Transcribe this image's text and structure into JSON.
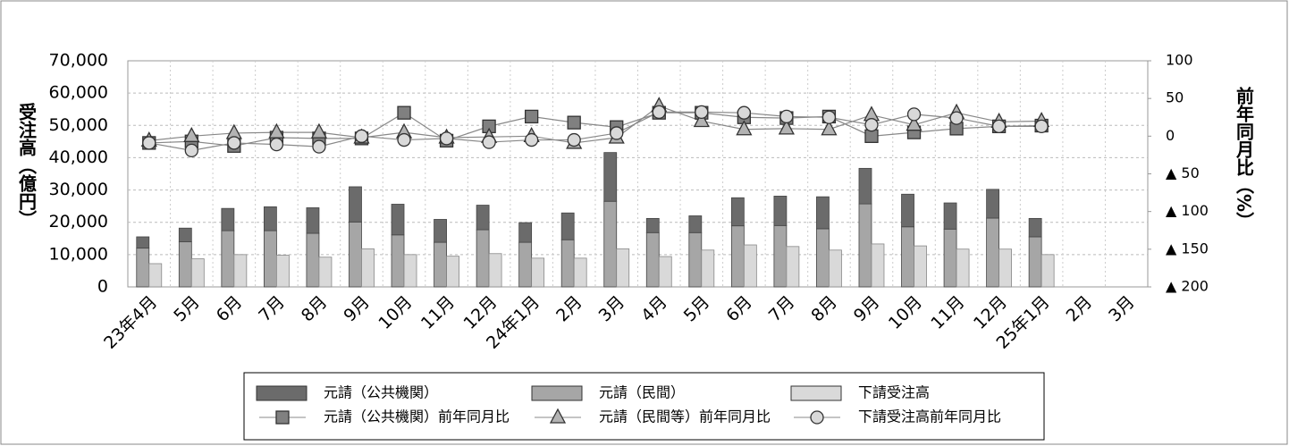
{
  "chart_data": {
    "type": "bar",
    "categories": [
      "23年4月",
      "5月",
      "6月",
      "7月",
      "8月",
      "9月",
      "10月",
      "11月",
      "12月",
      "24年1月",
      "2月",
      "3月",
      "4月",
      "5月",
      "6月",
      "7月",
      "8月",
      "9月",
      "10月",
      "11月",
      "12月",
      "25年1月",
      "2月",
      "3月"
    ],
    "ylabel": "受注高（億円）",
    "y2label": "前年同月比（%）",
    "ylim": [
      0,
      70000
    ],
    "yticks": [
      0,
      {
        "value": 10000,
        "label": "10,000"
      },
      {
        "value": 20000,
        "label": "20,000"
      },
      {
        "value": 30000,
        "label": "30,000"
      },
      {
        "value": 40000,
        "label": "40,000"
      },
      {
        "value": 50000,
        "label": "50,000"
      },
      {
        "value": 60000,
        "label": "60,000"
      },
      {
        "value": 70000,
        "label": "70,000"
      }
    ],
    "y2lim": [
      -200,
      100
    ],
    "y2ticks": [
      100,
      50,
      0,
      {
        "value": -50,
        "label": "▲ 50"
      },
      {
        "value": -100,
        "label": "▲ 100"
      },
      {
        "value": -150,
        "label": "▲ 150"
      },
      {
        "value": -200,
        "label": "▲ 200"
      }
    ],
    "grid": true,
    "series": [
      {
        "name": "元請（公共機関）",
        "type": "stacked",
        "color": "#6b6b6b",
        "values": [
          3500,
          4200,
          6900,
          7400,
          7900,
          10900,
          9500,
          7100,
          7600,
          6100,
          8300,
          15100,
          4400,
          5200,
          8700,
          9100,
          9900,
          11000,
          10100,
          8100,
          8900,
          5700,
          null,
          null
        ]
      },
      {
        "name": "元請（民間）",
        "type": "stacked",
        "color": "#a6a6a6",
        "values": [
          12000,
          14000,
          17400,
          17400,
          16600,
          20100,
          16100,
          13800,
          17700,
          13800,
          14600,
          26500,
          16800,
          16800,
          18900,
          19000,
          18000,
          25700,
          18600,
          17900,
          21300,
          15500,
          null,
          null
        ]
      },
      {
        "name": "下請受注高",
        "type": "bar",
        "color": "#d9d9d9",
        "values": [
          7200,
          8700,
          10000,
          9800,
          9200,
          11800,
          10000,
          9500,
          10300,
          8900,
          8900,
          11800,
          9400,
          11400,
          13000,
          12500,
          11400,
          13300,
          12700,
          11700,
          11700,
          10000,
          null,
          null
        ]
      },
      {
        "name": "元請（公共機関）前年同月比",
        "type": "line",
        "axis": "y2",
        "marker": "square",
        "color": "#808080",
        "values": [
          -9,
          -7,
          -13,
          -2,
          -3,
          -3,
          31,
          -6,
          13,
          26,
          18,
          12,
          31,
          31,
          25,
          24,
          26,
          0,
          5,
          10,
          13,
          14,
          null,
          null
        ]
      },
      {
        "name": "元請（民間等）前年同月比",
        "type": "line",
        "axis": "y2",
        "marker": "triangle",
        "color": "#b3b3b3",
        "values": [
          -6,
          0,
          4,
          5,
          5,
          -2,
          5,
          -2,
          -1,
          0,
          -9,
          -2,
          40,
          20,
          9,
          10,
          9,
          28,
          15,
          31,
          19,
          20,
          null,
          null
        ]
      },
      {
        "name": "下請受注高前年同月比",
        "type": "line",
        "axis": "y2",
        "marker": "circle",
        "color": "#d9d9d9",
        "values": [
          -9,
          -19,
          -9,
          -11,
          -14,
          0,
          -5,
          -3,
          -8,
          -5,
          -5,
          4,
          32,
          32,
          31,
          26,
          25,
          15,
          29,
          24,
          13,
          13,
          null,
          null
        ]
      }
    ]
  }
}
